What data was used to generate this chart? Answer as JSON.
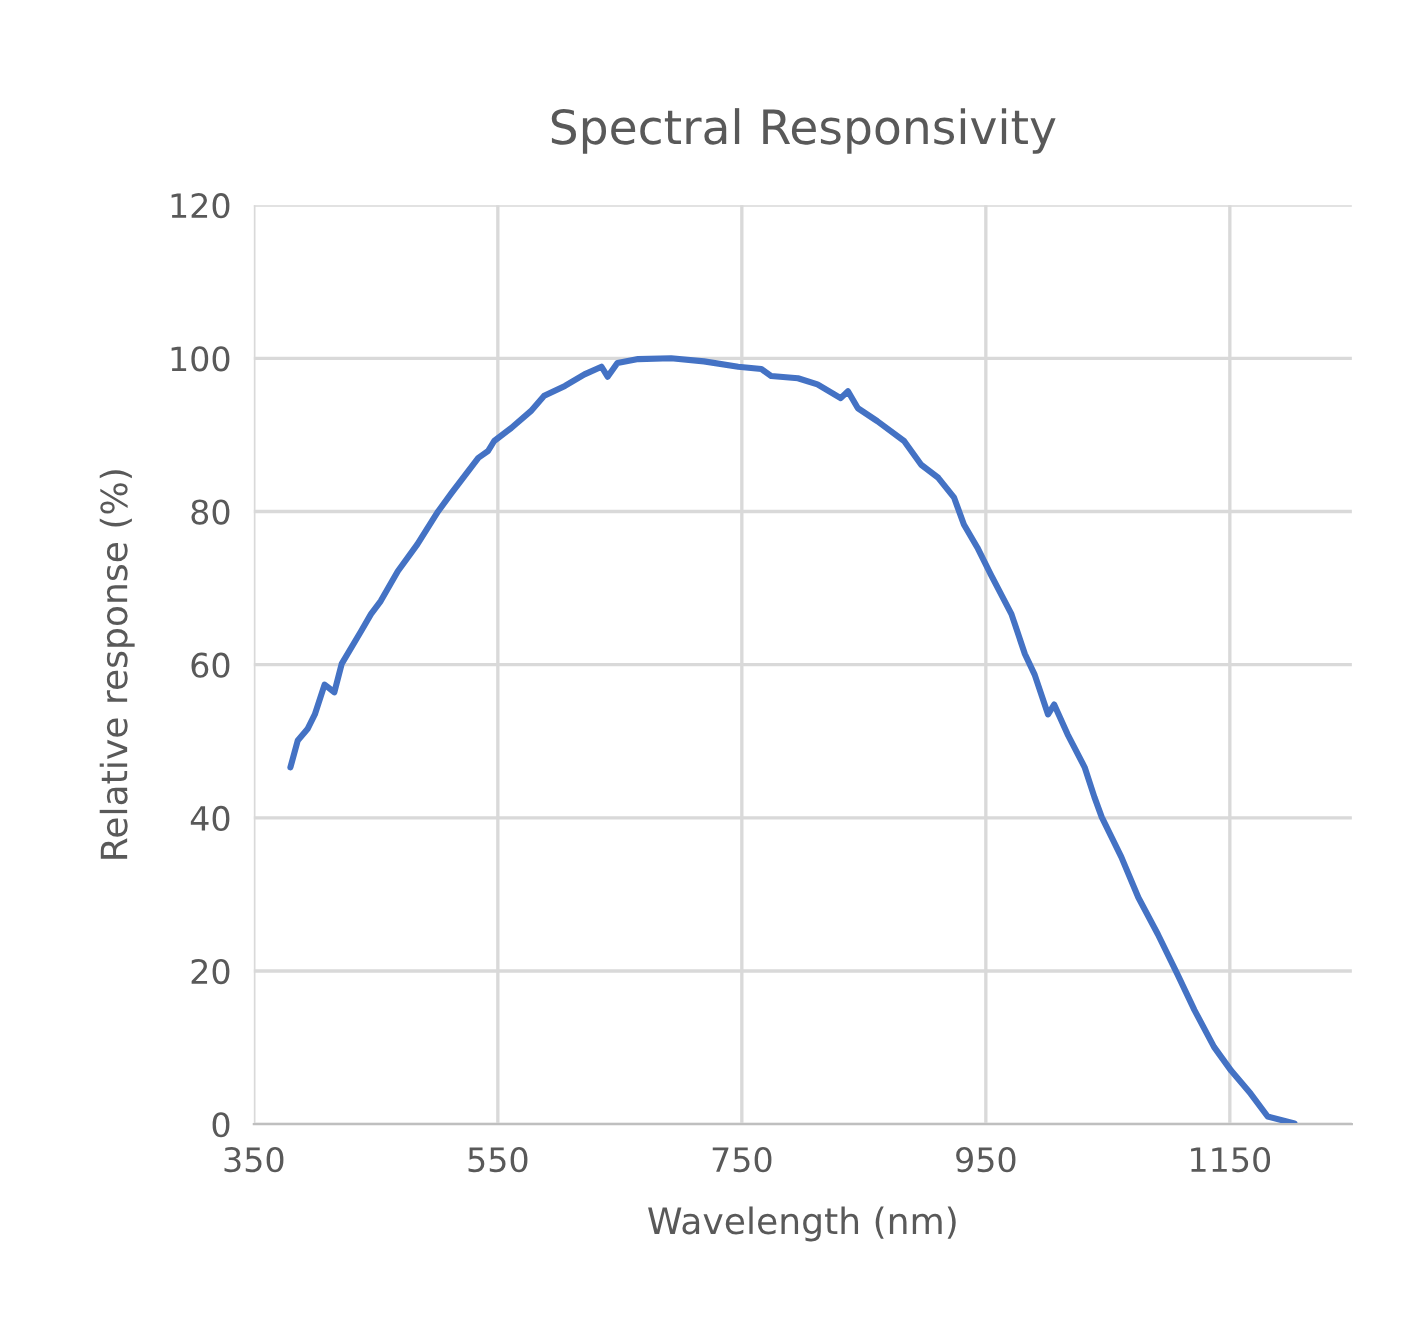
{
  "chart_data": {
    "type": "line",
    "title": "Spectral Responsivity",
    "xlabel": "Wavelength (nm)",
    "ylabel": "Relative response (%)",
    "xlim": [
      350,
      1250
    ],
    "xticks": [
      350,
      550,
      750,
      950,
      1150
    ],
    "ylim": [
      0,
      120
    ],
    "yticks": [
      0,
      20,
      40,
      60,
      80,
      100,
      120
    ],
    "grid": true,
    "series": [
      {
        "color": "#4472c4",
        "x": [
          380,
          386,
          394,
          400,
          408,
          416,
          422,
          438,
          446,
          454,
          468,
          484,
          501,
          512,
          534,
          542,
          547,
          561,
          577,
          588,
          605,
          621,
          635,
          640,
          648,
          665,
          692,
          719,
          747,
          766,
          774,
          796,
          812,
          831,
          837,
          845,
          861,
          883,
          897,
          911,
          924,
          932,
          943,
          954,
          971,
          982,
          990,
          1001,
          1006,
          1017,
          1031,
          1039,
          1045,
          1061,
          1075,
          1091,
          1107,
          1121,
          1137,
          1151,
          1167,
          1181,
          1203
        ],
        "values": [
          46.6,
          50.1,
          51.6,
          53.5,
          57.4,
          56.4,
          60.1,
          64.4,
          66.6,
          68.3,
          72.2,
          75.7,
          80.0,
          82.4,
          87.0,
          87.9,
          89.2,
          90.9,
          93.1,
          95.1,
          96.4,
          97.9,
          98.9,
          97.6,
          99.4,
          99.9,
          100,
          99.6,
          98.9,
          98.6,
          97.7,
          97.4,
          96.6,
          94.8,
          95.7,
          93.5,
          91.8,
          89.2,
          86.1,
          84.4,
          81.8,
          78.3,
          75.3,
          71.8,
          66.6,
          61.4,
          58.7,
          53.5,
          54.8,
          50.9,
          46.6,
          42.7,
          40.1,
          34.9,
          29.6,
          24.8,
          19.6,
          14.9,
          10.1,
          7.0,
          4.0,
          1.0,
          0.1
        ]
      }
    ]
  }
}
